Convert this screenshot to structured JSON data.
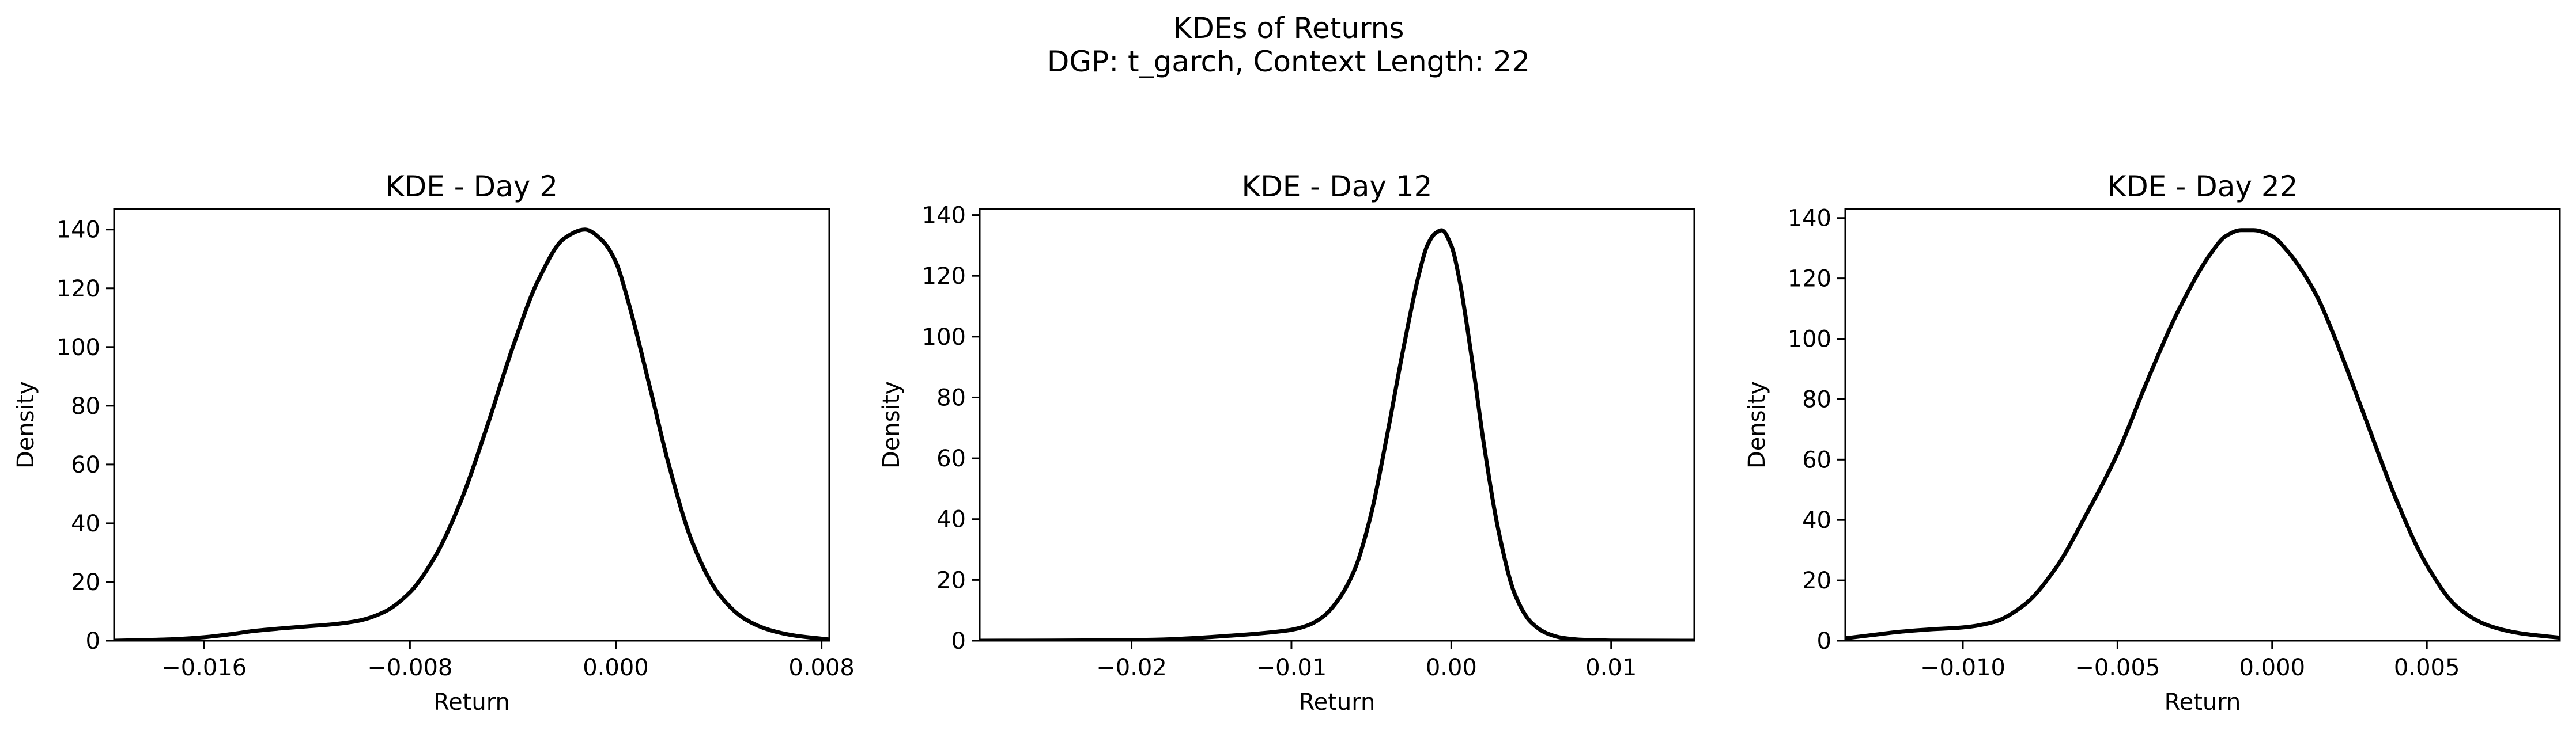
{
  "figure": {
    "title_line1": "KDEs of Returns",
    "title_line2": "DGP: t_garch, Context Length: 22"
  },
  "chart_data": [
    {
      "type": "line",
      "title": "KDE - Day 2",
      "xlabel": "Return",
      "ylabel": "Density",
      "xlim": [
        -0.0195,
        0.0083
      ],
      "ylim": [
        0,
        147
      ],
      "xticks": [
        -0.016,
        -0.008,
        0.0,
        0.008
      ],
      "xtick_labels": [
        "−0.016",
        "−0.008",
        "0.000",
        "0.008"
      ],
      "yticks": [
        0,
        20,
        40,
        60,
        80,
        100,
        120,
        140
      ],
      "ytick_labels": [
        "0",
        "20",
        "40",
        "60",
        "80",
        "100",
        "120",
        "140"
      ],
      "grid": false,
      "color": "#000000",
      "series": [
        {
          "x": [
            -0.0195,
            -0.018,
            -0.017,
            -0.016,
            -0.015,
            -0.014,
            -0.013,
            -0.012,
            -0.011,
            -0.01,
            -0.009,
            -0.008,
            -0.007,
            -0.006,
            -0.005,
            -0.004,
            -0.003,
            -0.002,
            -0.0012,
            -0.0005,
            0.0,
            0.0005,
            0.001,
            0.0015,
            0.002,
            0.003,
            0.004,
            0.005,
            0.006,
            0.007,
            0.008,
            0.0083
          ],
          "y": [
            0,
            0.3,
            0.6,
            1.2,
            2.2,
            3.4,
            4.2,
            4.9,
            5.6,
            6.8,
            9.8,
            16.5,
            29,
            48,
            73,
            100,
            123,
            137,
            140,
            136,
            129,
            115,
            98,
            80,
            62,
            33,
            16,
            7.5,
            3.6,
            1.7,
            0.7,
            0.4
          ]
        }
      ]
    },
    {
      "type": "line",
      "title": "KDE - Day 12",
      "xlabel": "Return",
      "ylabel": "Density",
      "xlim": [
        -0.0295,
        0.0152
      ],
      "ylim": [
        0,
        142
      ],
      "xticks": [
        -0.02,
        -0.01,
        0.0,
        0.01
      ],
      "xtick_labels": [
        "−0.02",
        "−0.01",
        "0.00",
        "0.01"
      ],
      "yticks": [
        0,
        20,
        40,
        60,
        80,
        100,
        120,
        140
      ],
      "ytick_labels": [
        "0",
        "20",
        "40",
        "60",
        "80",
        "100",
        "120",
        "140"
      ],
      "grid": false,
      "color": "#000000",
      "series": [
        {
          "x": [
            -0.0295,
            -0.025,
            -0.02,
            -0.018,
            -0.016,
            -0.014,
            -0.012,
            -0.01,
            -0.009,
            -0.008,
            -0.007,
            -0.006,
            -0.005,
            -0.004,
            -0.003,
            -0.002,
            -0.0015,
            -0.001,
            -0.0006,
            0.0,
            0.0005,
            0.001,
            0.0015,
            0.002,
            0.003,
            0.004,
            0.005,
            0.006,
            0.007,
            0.008,
            0.009,
            0.01,
            0.0152
          ],
          "y": [
            0,
            0.05,
            0.2,
            0.4,
            0.9,
            1.6,
            2.4,
            3.6,
            5,
            8,
            14,
            24,
            42,
            68,
            96,
            121,
            130,
            134,
            135,
            130,
            119,
            103,
            85,
            66,
            35,
            15,
            6,
            2.4,
            0.9,
            0.35,
            0.15,
            0.05,
            0
          ]
        }
      ]
    },
    {
      "type": "line",
      "title": "KDE - Day 22",
      "xlabel": "Return",
      "ylabel": "Density",
      "xlim": [
        -0.0138,
        0.0093
      ],
      "ylim": [
        0,
        143
      ],
      "xticks": [
        -0.01,
        -0.005,
        0.0,
        0.005
      ],
      "xtick_labels": [
        "−0.010",
        "−0.005",
        "0.000",
        "0.005"
      ],
      "yticks": [
        0,
        20,
        40,
        60,
        80,
        100,
        120,
        140
      ],
      "ytick_labels": [
        "0",
        "20",
        "40",
        "60",
        "80",
        "100",
        "120",
        "140"
      ],
      "grid": false,
      "color": "#000000",
      "series": [
        {
          "x": [
            -0.0138,
            -0.013,
            -0.012,
            -0.011,
            -0.01,
            -0.009,
            -0.008,
            -0.007,
            -0.006,
            -0.005,
            -0.004,
            -0.003,
            -0.002,
            -0.0015,
            -0.001,
            -0.0006,
            0.0,
            0.0005,
            0.001,
            0.0015,
            0.002,
            0.003,
            0.004,
            0.005,
            0.006,
            0.007,
            0.008,
            0.0093
          ],
          "y": [
            0.8,
            1.8,
            3,
            3.8,
            4.4,
            6.2,
            12,
            24,
            42,
            62,
            87,
            110,
            128,
            134,
            136,
            136,
            134,
            129,
            122,
            113,
            101,
            74,
            47,
            25,
            11,
            5,
            2.5,
            1
          ]
        }
      ]
    }
  ]
}
